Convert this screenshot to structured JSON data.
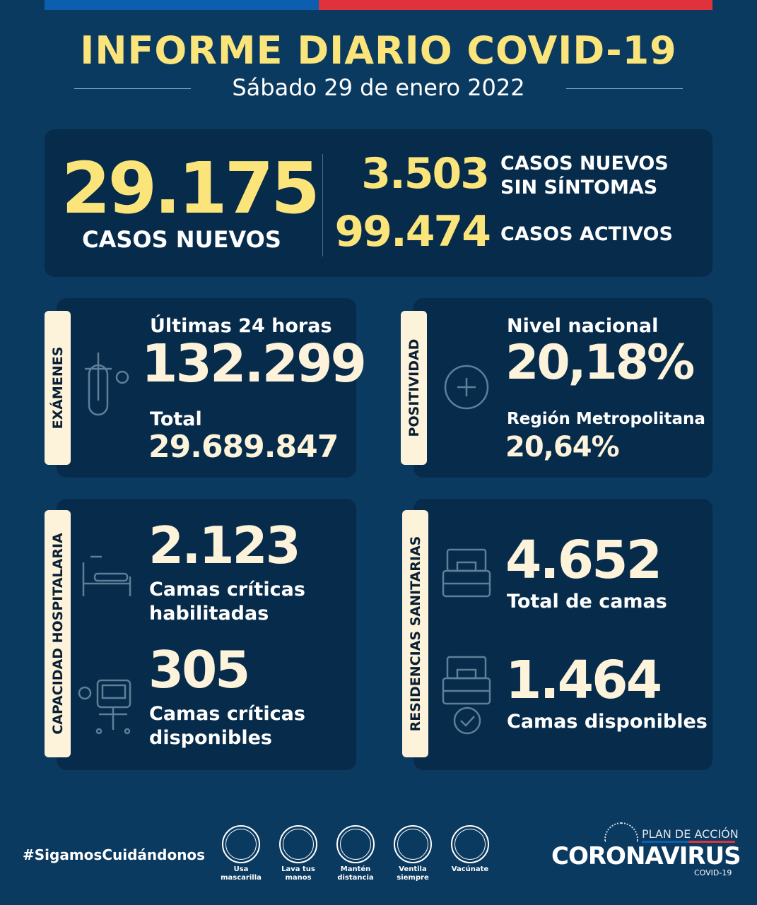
{
  "header": {
    "title": "INFORME DIARIO COVID-19",
    "date": "Sábado 29 de enero 2022"
  },
  "summary": {
    "new_cases": "29.175",
    "new_cases_label": "CASOS NUEVOS",
    "asymptomatic": "3.503",
    "asymptomatic_label_1": "CASOS NUEVOS",
    "asymptomatic_label_2": "SIN SÍNTOMAS",
    "active": "99.474",
    "active_label": "CASOS ACTIVOS"
  },
  "exams": {
    "tab": "EXÁMENES",
    "last24_label": "Últimas 24 horas",
    "last24": "132.299",
    "total_label": "Total",
    "total": "29.689.847"
  },
  "positivity": {
    "tab": "POSITIVIDAD",
    "national_label": "Nivel nacional",
    "national": "20,18%",
    "rm_label": "Región Metropolitana",
    "rm": "20,64%"
  },
  "hospital": {
    "tab": "CAPACIDAD HOSPITALARIA",
    "enabled": "2.123",
    "enabled_label_1": "Camas críticas",
    "enabled_label_2": "habilitadas",
    "available": "305",
    "available_label_1": "Camas críticas",
    "available_label_2": "disponibles"
  },
  "residences": {
    "tab": "RESIDENCIAS SANITARIAS",
    "total": "4.652",
    "total_label": "Total de camas",
    "available": "1.464",
    "available_label": "Camas disponibles"
  },
  "footer": {
    "hashtag": "#SigamosCuidándonos",
    "tips": [
      {
        "l1": "Usa",
        "l2": "mascarilla"
      },
      {
        "l1": "Lava tus",
        "l2": "manos"
      },
      {
        "l1": "Mantén",
        "l2": "distancia"
      },
      {
        "l1": "Ventila",
        "l2": "siempre"
      },
      {
        "l1": "Vacúnate",
        "l2": ""
      }
    ],
    "plan": "PLAN DE ACCIÓN",
    "brand": "CORONAVIRUS",
    "brand_sub": "COVID-19"
  }
}
